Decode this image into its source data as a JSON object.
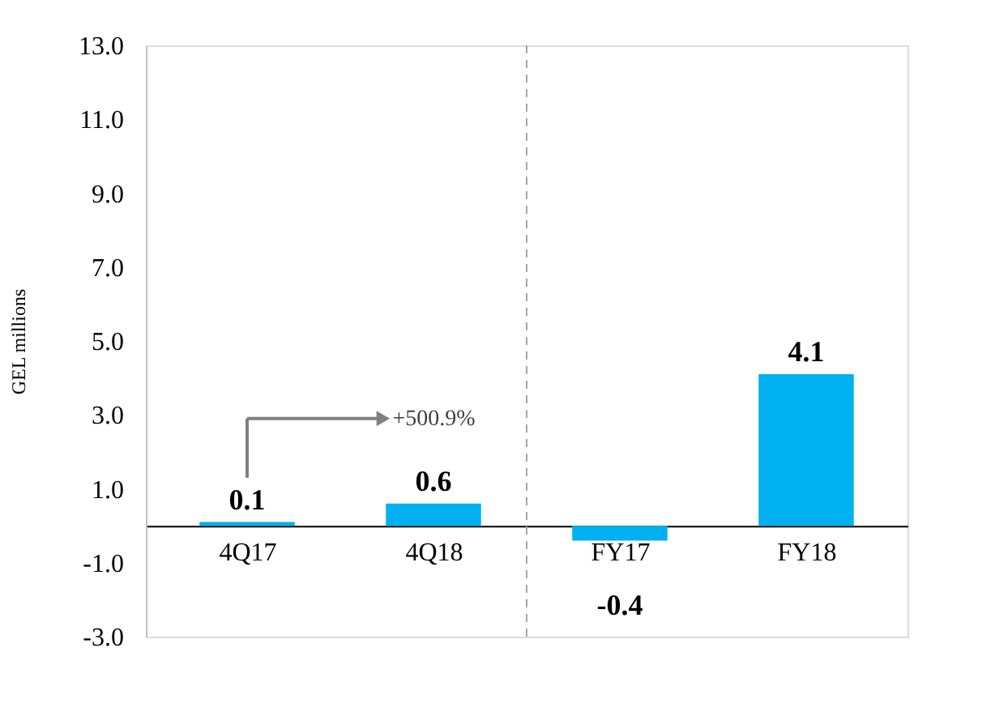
{
  "chart_data": {
    "type": "bar",
    "categories": [
      "4Q17",
      "4Q18",
      "FY17",
      "FY18"
    ],
    "values": [
      0.1,
      0.6,
      -0.4,
      4.1
    ],
    "color": "#00b0f0",
    "ylabel": "GEL millions",
    "ylim": [
      -3,
      13
    ],
    "yticks": [
      {
        "value": -3,
        "label": "-3.0"
      },
      {
        "value": -1,
        "label": "-1.0"
      },
      {
        "value": 1,
        "label": "1.0"
      },
      {
        "value": 3,
        "label": "3.0"
      },
      {
        "value": 5,
        "label": "5.0"
      },
      {
        "value": 7,
        "label": "7.0"
      },
      {
        "value": 9,
        "label": "9.0"
      },
      {
        "value": 11,
        "label": "11.0"
      },
      {
        "value": 13,
        "label": "13.0"
      }
    ],
    "data_labels": true,
    "grid": false,
    "annotations": [
      "+500.9%"
    ]
  }
}
